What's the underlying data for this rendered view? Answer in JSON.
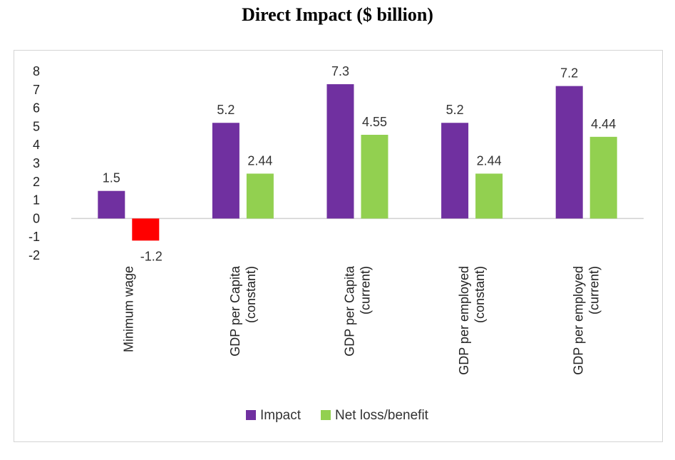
{
  "chart_data": {
    "type": "bar",
    "title": "Direct Impact ($ billion)",
    "categories": [
      [
        "Minimum wage"
      ],
      [
        "GDP per Capita",
        "(constant)"
      ],
      [
        "GDP per Capita",
        "(current)"
      ],
      [
        "GDP per employed",
        "(constant)"
      ],
      [
        "GDP per employed",
        "(current)"
      ]
    ],
    "series": [
      {
        "name": "Impact",
        "color": "#7030a0",
        "values": [
          1.5,
          5.2,
          7.3,
          5.2,
          7.2
        ],
        "labels": [
          "1.5",
          "5.2",
          "7.3",
          "5.2",
          "7.2"
        ]
      },
      {
        "name": "Net loss/benefit",
        "color": "#92d050",
        "negative_color": "#ff0000",
        "values": [
          -1.2,
          2.44,
          4.55,
          2.44,
          4.44
        ],
        "labels": [
          "-1.2",
          "2.44",
          "4.55",
          "2.44",
          "4.44"
        ]
      }
    ],
    "ylim": [
      -2,
      8
    ],
    "yticks": [
      8,
      7,
      6,
      5,
      4,
      3,
      2,
      1,
      0,
      -1,
      -2
    ],
    "xlabel": "",
    "ylabel": "",
    "grid": false,
    "legend": "bottom"
  }
}
